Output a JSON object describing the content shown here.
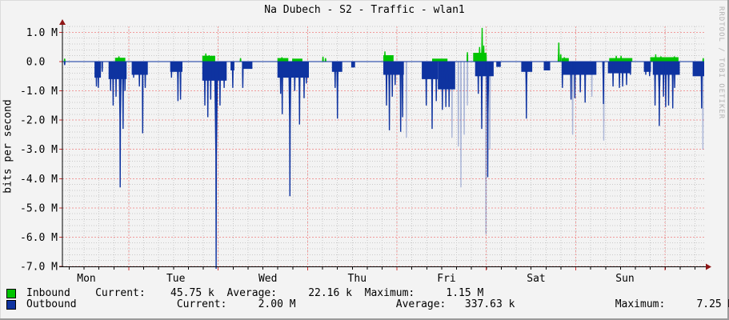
{
  "window": {
    "watermark": "RRDTOOL / TOBI OETIKER"
  },
  "chart_data": {
    "type": "area",
    "title": "Na Dubech - S2 - Traffic - wlan1",
    "ylabel": "bits per second",
    "x_span_days": 7.18,
    "ylim_mbps": [
      -7.0,
      1.2
    ],
    "grid": {
      "minor_color": "#c9c9c9",
      "major_color": "#f09b9b",
      "axis_color": "#000000",
      "arrow_color": "#8f1616",
      "major_tick_color": "#cc3333",
      "zero_line_color": "#0e33a0",
      "y_minor_step_mbps": 0.2,
      "y_major_step_mbps": 1.0,
      "x_minor_start": 0.0106,
      "x_minor_step": 0.023216,
      "x_major_start": 0.10349,
      "x_major_step": 0.139255
    },
    "y_ticks": [
      {
        "label": "1.0 M",
        "v": 1.0
      },
      {
        "label": "0.0",
        "v": 0.0
      },
      {
        "label": "-1.0 M",
        "v": -1.0
      },
      {
        "label": "-2.0 M",
        "v": -2.0
      },
      {
        "label": "-3.0 M",
        "v": -3.0
      },
      {
        "label": "-4.0 M",
        "v": -4.0
      },
      {
        "label": "-5.0 M",
        "v": -5.0
      },
      {
        "label": "-6.0 M",
        "v": -6.0
      },
      {
        "label": "-7.0 M",
        "v": -7.0
      }
    ],
    "x_day_labels": [
      {
        "label": "Mon",
        "f": 0.0374
      },
      {
        "label": "Tue",
        "f": 0.1767
      },
      {
        "label": "Wed",
        "f": 0.3201
      },
      {
        "label": "Thu",
        "f": 0.4592
      },
      {
        "label": "Fri",
        "f": 0.5985
      },
      {
        "label": "Sat",
        "f": 0.7382
      },
      {
        "label": "Sun",
        "f": 0.8766
      }
    ],
    "series": [
      {
        "name": "Inbound",
        "color": "#00c400",
        "unit": "bits/s",
        "direction": "positive",
        "blocks": [
          [
            0.082,
            0.098,
            0.13
          ],
          [
            0.218,
            0.238,
            0.2
          ],
          [
            0.335,
            0.352,
            0.12
          ],
          [
            0.358,
            0.374,
            0.1
          ],
          [
            0.5,
            0.516,
            0.22
          ],
          [
            0.576,
            0.6,
            0.1
          ],
          [
            0.64,
            0.66,
            0.3
          ],
          [
            0.778,
            0.789,
            0.12
          ],
          [
            0.852,
            0.888,
            0.12
          ],
          [
            0.916,
            0.96,
            0.15
          ]
        ],
        "spikes_mbps": [
          [
            0.0035,
            0.1,
            2
          ],
          [
            0.088,
            0.18,
            3
          ],
          [
            0.2235,
            0.28,
            3
          ],
          [
            0.2285,
            0.22,
            3
          ],
          [
            0.2775,
            0.12,
            2
          ],
          [
            0.342,
            0.15,
            3
          ],
          [
            0.406,
            0.17,
            2
          ],
          [
            0.41,
            0.12,
            2
          ],
          [
            0.5025,
            0.35,
            3
          ],
          [
            0.507,
            0.2,
            2
          ],
          [
            0.631,
            0.32,
            2
          ],
          [
            0.65,
            0.5,
            3
          ],
          [
            0.654,
            1.15,
            3
          ],
          [
            0.6565,
            0.55,
            2
          ],
          [
            0.66,
            0.3,
            2
          ],
          [
            0.7735,
            0.65,
            3
          ],
          [
            0.7765,
            0.25,
            2
          ],
          [
            0.782,
            0.15,
            2
          ],
          [
            0.863,
            0.2,
            2
          ],
          [
            0.8705,
            0.2,
            2
          ],
          [
            0.9245,
            0.25,
            3
          ],
          [
            0.9325,
            0.18,
            2
          ],
          [
            0.945,
            0.15,
            2
          ],
          [
            0.9535,
            0.18,
            2
          ],
          [
            0.9985,
            0.12,
            2
          ]
        ]
      },
      {
        "name": "Outbound",
        "color": "#0e33a0",
        "unit": "bits/s",
        "direction": "negative",
        "faint_opacity": 0.3,
        "blocks": [
          [
            0.05,
            0.06,
            0.55
          ],
          [
            0.072,
            0.1,
            0.6
          ],
          [
            0.108,
            0.133,
            0.45
          ],
          [
            0.168,
            0.187,
            0.35
          ],
          [
            0.218,
            0.256,
            0.65
          ],
          [
            0.262,
            0.268,
            0.3
          ],
          [
            0.28,
            0.296,
            0.25
          ],
          [
            0.335,
            0.384,
            0.55
          ],
          [
            0.42,
            0.436,
            0.35
          ],
          [
            0.45,
            0.456,
            0.2
          ],
          [
            0.5,
            0.532,
            0.45
          ],
          [
            0.56,
            0.585,
            0.6
          ],
          [
            0.585,
            0.612,
            0.95
          ],
          [
            0.643,
            0.672,
            0.5
          ],
          [
            0.676,
            0.683,
            0.18
          ],
          [
            0.715,
            0.732,
            0.35
          ],
          [
            0.75,
            0.76,
            0.3
          ],
          [
            0.779,
            0.832,
            0.45
          ],
          [
            0.85,
            0.886,
            0.4
          ],
          [
            0.906,
            0.917,
            0.35
          ],
          [
            0.92,
            0.962,
            0.45
          ],
          [
            0.982,
            1.0,
            0.5
          ]
        ],
        "spikes_mbps": [
          [
            0.0035,
            0.12,
            2
          ],
          [
            0.053,
            0.85,
            3
          ],
          [
            0.056,
            0.9,
            2
          ],
          [
            0.062,
            0.35,
            2
          ],
          [
            0.075,
            1.0,
            3
          ],
          [
            0.079,
            1.5,
            3
          ],
          [
            0.0835,
            1.2,
            3
          ],
          [
            0.09,
            4.3,
            4
          ],
          [
            0.0945,
            2.3,
            3
          ],
          [
            0.0975,
            1.0,
            2
          ],
          [
            0.111,
            0.55,
            3
          ],
          [
            0.12,
            0.85,
            3
          ],
          [
            0.125,
            2.45,
            2
          ],
          [
            0.129,
            0.9,
            2
          ],
          [
            0.17,
            0.55,
            2
          ],
          [
            0.18,
            1.35,
            3
          ],
          [
            0.184,
            1.3,
            2
          ],
          [
            0.222,
            1.5,
            2
          ],
          [
            0.2265,
            1.9,
            3
          ],
          [
            0.231,
            1.3,
            2
          ],
          [
            0.2395,
            7.3,
            5
          ],
          [
            0.2455,
            1.5,
            3
          ],
          [
            0.252,
            0.9,
            2
          ],
          [
            0.2655,
            0.9,
            2
          ],
          [
            0.281,
            0.9,
            2
          ],
          [
            0.34,
            1.1,
            2
          ],
          [
            0.3425,
            1.8,
            3
          ],
          [
            0.3545,
            4.6,
            4
          ],
          [
            0.362,
            1.0,
            2
          ],
          [
            0.3695,
            2.15,
            3
          ],
          [
            0.3765,
            1.25,
            3
          ],
          [
            0.38,
            0.75,
            2
          ],
          [
            0.425,
            0.9,
            3
          ],
          [
            0.4285,
            1.95,
            3
          ],
          [
            0.505,
            1.5,
            3
          ],
          [
            0.5095,
            2.35,
            3
          ],
          [
            0.514,
            1.2,
            2
          ],
          [
            0.5185,
            0.8,
            2
          ],
          [
            0.527,
            2.4,
            3
          ],
          [
            0.53,
            1.9,
            2
          ],
          [
            0.567,
            1.5,
            3
          ],
          [
            0.576,
            2.3,
            3
          ],
          [
            0.5825,
            1.35,
            3
          ],
          [
            0.592,
            1.65,
            4
          ],
          [
            0.5975,
            1.55,
            3
          ],
          [
            0.6025,
            1.55,
            3
          ],
          [
            0.648,
            1.1,
            2
          ],
          [
            0.6534,
            2.3,
            3
          ],
          [
            0.6627,
            3.95,
            4
          ],
          [
            0.723,
            1.95,
            3
          ],
          [
            0.779,
            0.9,
            2
          ],
          [
            0.7925,
            1.3,
            3
          ],
          [
            0.7985,
            1.25,
            2
          ],
          [
            0.807,
            1.05,
            3
          ],
          [
            0.8145,
            1.4,
            3
          ],
          [
            0.843,
            1.45,
            3
          ],
          [
            0.858,
            0.85,
            2
          ],
          [
            0.868,
            0.9,
            2
          ],
          [
            0.873,
            0.85,
            2
          ],
          [
            0.879,
            0.8,
            3
          ],
          [
            0.885,
            0.45,
            2
          ],
          [
            0.909,
            0.45,
            2
          ],
          [
            0.915,
            0.5,
            2
          ],
          [
            0.9235,
            1.5,
            3
          ],
          [
            0.93,
            2.2,
            4
          ],
          [
            0.9365,
            1.2,
            2
          ],
          [
            0.94,
            1.55,
            3
          ],
          [
            0.9445,
            1.5,
            3
          ],
          [
            0.951,
            1.6,
            3
          ],
          [
            0.954,
            0.9,
            2
          ],
          [
            0.996,
            1.6,
            3
          ]
        ],
        "faint_spikes_mbps": [
          [
            0.536,
            2.6,
            2
          ],
          [
            0.607,
            2.6,
            2
          ],
          [
            0.617,
            2.9,
            2
          ],
          [
            0.621,
            4.3,
            2
          ],
          [
            0.626,
            2.5,
            2
          ],
          [
            0.631,
            1.5,
            2
          ],
          [
            0.66,
            5.9,
            2
          ],
          [
            0.666,
            3.0,
            3
          ],
          [
            0.795,
            2.5,
            2
          ],
          [
            0.825,
            1.2,
            2
          ],
          [
            0.8435,
            2.7,
            2
          ],
          [
            0.998,
            3.0,
            2
          ]
        ]
      }
    ],
    "legend": {
      "items": [
        {
          "name": "Inbound",
          "color": "#00c400",
          "current": "45.75 k",
          "average": "22.16 k",
          "maximum": "1.15 M"
        },
        {
          "name": "Outbound",
          "color": "#0e33a0",
          "current": "2.00 M",
          "average": "337.63 k",
          "maximum": "7.25 M"
        }
      ],
      "row1": "Inbound    Current:    45.75 k  Average:     22.16 k  Maximum:     1.15 M",
      "row2": "Outbound                Current:     2.00 M                Average:   337.63 k                Maximum:     7.25 M"
    }
  }
}
